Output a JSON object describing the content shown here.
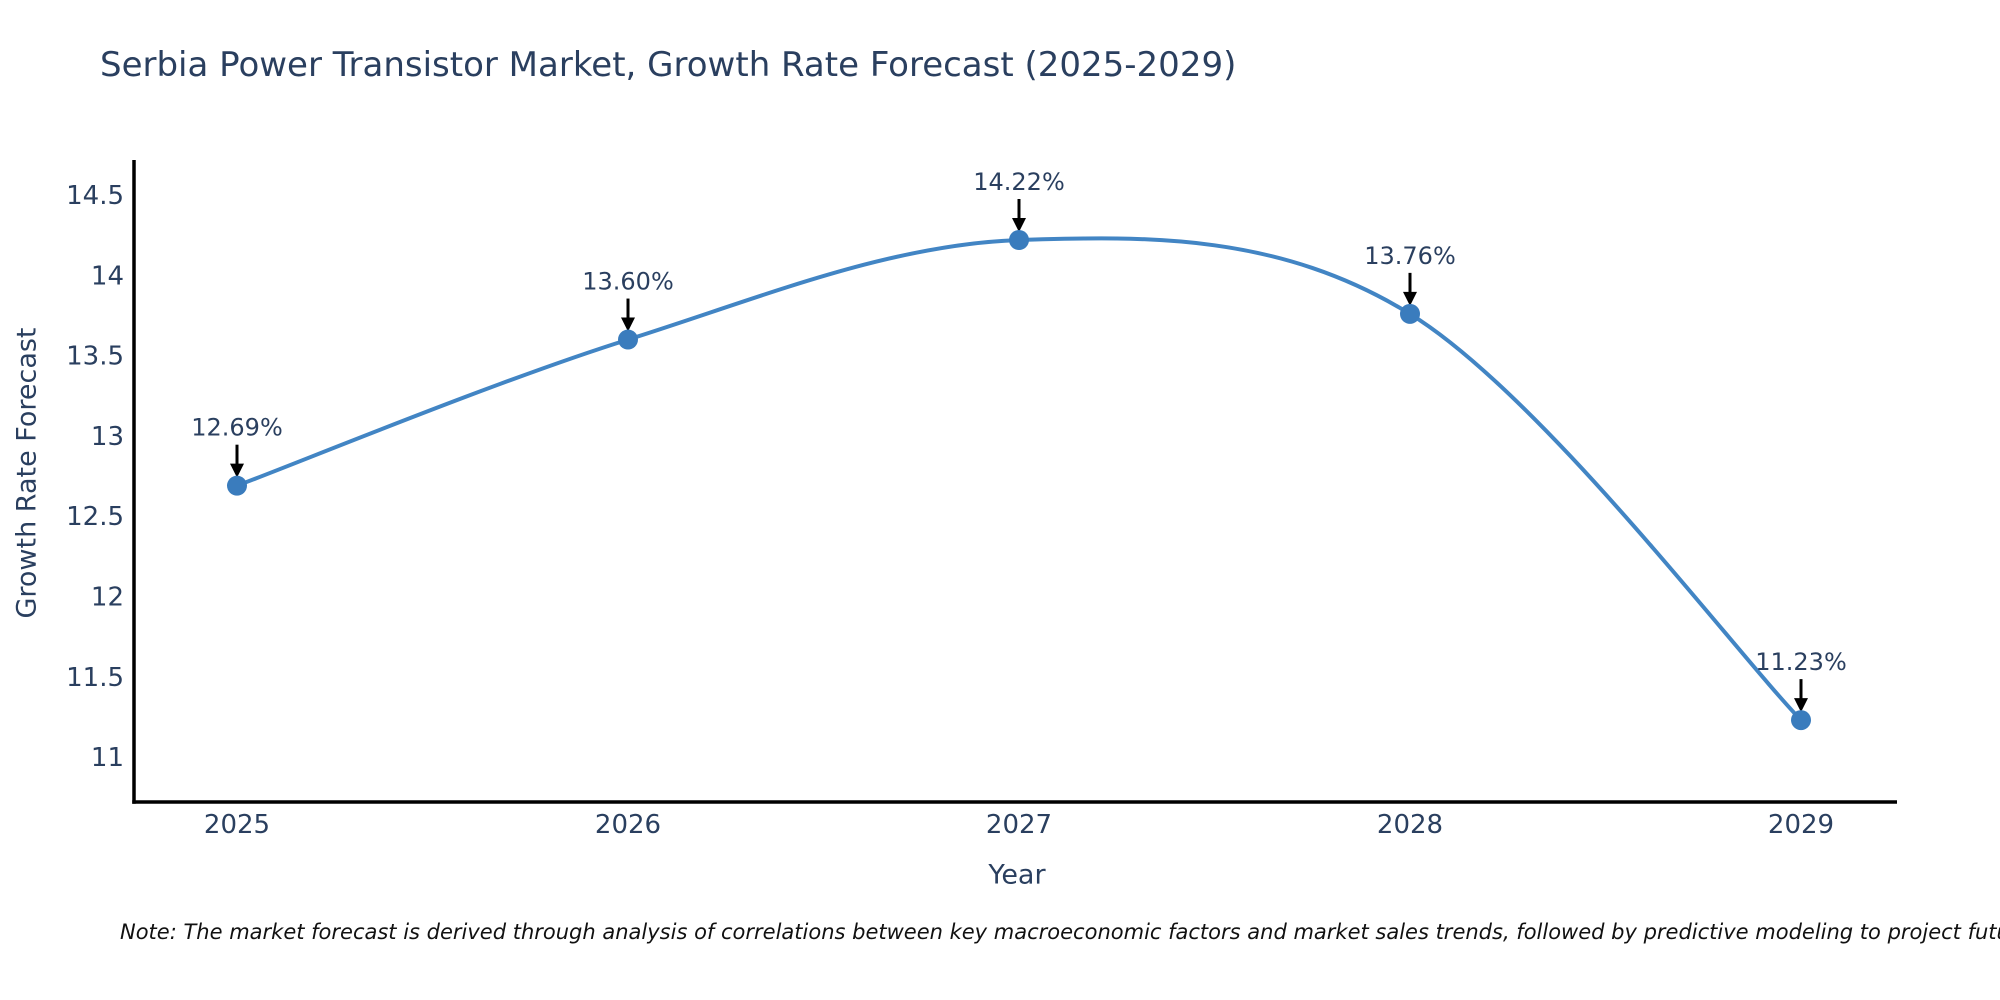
{
  "chart_data": {
    "type": "line",
    "title": "Serbia Power Transistor Market, Growth Rate Forecast (2025-2029)",
    "xlabel": "Year",
    "ylabel": "Growth Rate Forecast",
    "categories": [
      "2025",
      "2026",
      "2027",
      "2028",
      "2029"
    ],
    "series": [
      {
        "name": "Growth Rate Forecast",
        "values": [
          12.69,
          13.6,
          14.22,
          13.76,
          11.23
        ],
        "point_labels": [
          "12.69%",
          "13.60%",
          "14.22%",
          "13.76%",
          "11.23%"
        ]
      }
    ],
    "y_ticks": [
      11,
      11.5,
      12,
      12.5,
      13,
      13.5,
      14,
      14.5
    ],
    "ylim": [
      10.72,
      14.72
    ],
    "grid": false,
    "legend_position": "none",
    "line_shape": "spline",
    "colors": {
      "line": "#4285c4",
      "marker": "#3a7cbd",
      "axis": "#000000",
      "tick_text": "#2a3f5f",
      "annotation_text": "#2a3f5f",
      "annotation_arrow": "#000000",
      "title_text": "#2a3f5f",
      "note_text": "#111111"
    }
  },
  "note": {
    "text": "Note: The market forecast is derived through analysis of correlations between key macroeconomic factors and market sales trends, followed by predictive modeling to project future sal"
  }
}
